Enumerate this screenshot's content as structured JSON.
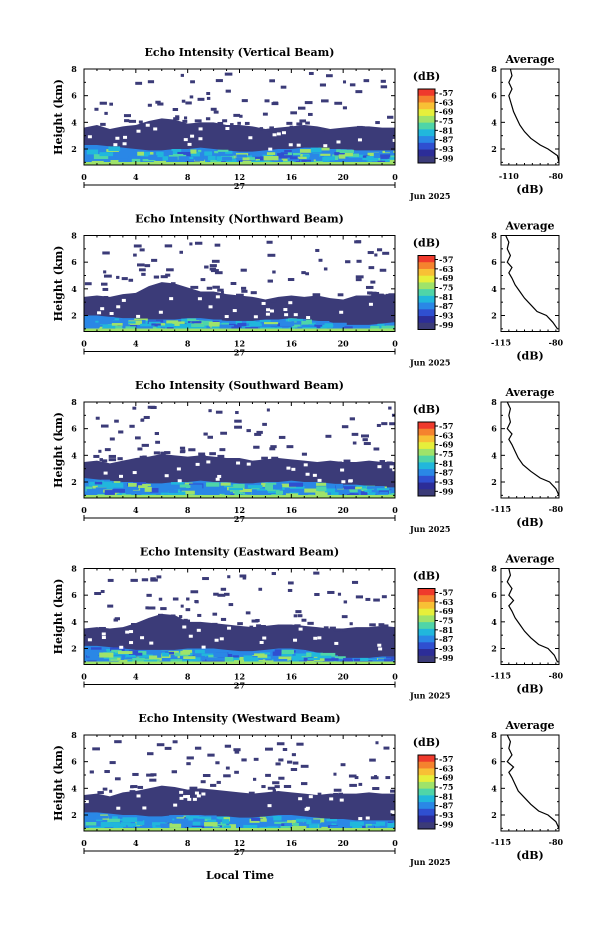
{
  "figure": {
    "bottom_xlabel": "Local Time",
    "colorbar_unit": "(dB)",
    "colorbar_ticks": [
      "-57",
      "-63",
      "-69",
      "-75",
      "-81",
      "-87",
      "-93",
      "-99"
    ],
    "colorbar_colors": [
      "#ef3a2c",
      "#f5822e",
      "#f8c035",
      "#e6ef3b",
      "#9fe36a",
      "#4fd5a8",
      "#21b7dc",
      "#2a87e6",
      "#2f4fd0",
      "#2c2d98",
      "#3b3b78"
    ],
    "colors": {
      "low_echo": "#3b3b78",
      "strong_echo": "#2a87e6"
    }
  },
  "chart_data": [
    {
      "type": "heatmap",
      "title": "Echo Intensity (Vertical Beam)",
      "ylabel": "Height (km)",
      "xticks": [
        "0",
        "4",
        "8",
        "12",
        "16",
        "20",
        "0"
      ],
      "day_label": "27",
      "date_label": "Jun 2025",
      "yticks": [
        "2",
        "4",
        "6",
        "8"
      ],
      "xlim": [
        0,
        24
      ],
      "ylim": [
        0.8,
        8
      ],
      "cloud_top_km": [
        3.6,
        3.8,
        3.5,
        3.7,
        3.8,
        4.1,
        4.3,
        4.2,
        3.9,
        4.0,
        4.0,
        3.8,
        3.8,
        3.7,
        3.5,
        3.6,
        3.7,
        3.8,
        3.7,
        3.5,
        3.6,
        3.7,
        3.7,
        3.6,
        3.6
      ],
      "strong_echo_top_km": [
        2.3,
        2.3,
        2.2,
        2.1,
        2.0,
        1.9,
        1.9,
        2.0,
        2.0,
        2.1,
        2.0,
        1.9,
        1.8,
        1.8,
        1.9,
        2.0,
        2.0,
        2.1,
        2.1,
        2.0,
        2.0,
        1.9,
        1.9,
        1.9,
        1.9
      ],
      "profile": {
        "title": "Average",
        "xlabel": "(dB)",
        "xticks": [
          "-110",
          "-80"
        ],
        "yticks": [
          "2",
          "4",
          "6",
          "8"
        ],
        "xlim": [
          -115,
          -78
        ],
        "ylim": [
          0.8,
          8
        ],
        "x": [
          -78,
          -79,
          -85,
          -90,
          -96,
          -100,
          -103,
          -105,
          -107,
          -108,
          -109,
          -110,
          -108,
          -110,
          -108,
          -109
        ],
        "y": [
          1.0,
          1.5,
          2.0,
          2.3,
          2.8,
          3.3,
          3.8,
          4.3,
          4.8,
          5.2,
          5.6,
          6.0,
          6.5,
          7.0,
          7.5,
          8.0
        ]
      }
    },
    {
      "type": "heatmap",
      "title": "Echo Intensity (Northward Beam)",
      "ylabel": "Height (km)",
      "xticks": [
        "0",
        "4",
        "8",
        "12",
        "16",
        "20",
        "0"
      ],
      "day_label": "27",
      "date_label": "Jun 2025",
      "yticks": [
        "2",
        "4",
        "6",
        "8"
      ],
      "xlim": [
        0,
        24
      ],
      "ylim": [
        0.8,
        8
      ],
      "cloud_top_km": [
        3.4,
        3.5,
        3.4,
        3.6,
        3.7,
        4.2,
        4.5,
        4.4,
        4.1,
        3.8,
        3.8,
        3.6,
        3.5,
        3.4,
        3.2,
        3.4,
        3.5,
        3.4,
        3.5,
        3.3,
        3.2,
        3.5,
        3.5,
        3.6,
        3.5
      ],
      "strong_echo_top_km": [
        2.0,
        2.0,
        1.9,
        1.8,
        1.8,
        1.7,
        1.7,
        1.7,
        1.8,
        1.8,
        1.7,
        1.6,
        1.6,
        1.6,
        1.7,
        1.7,
        1.8,
        1.7,
        1.6,
        1.5,
        1.3,
        1.3,
        1.3,
        1.4,
        1.5
      ],
      "profile": {
        "title": "Average",
        "xlabel": "(dB)",
        "xticks": [
          "-115",
          "-80"
        ],
        "yticks": [
          "2",
          "4",
          "6",
          "8"
        ],
        "xlim": [
          -115,
          -78
        ],
        "ylim": [
          0.8,
          8
        ],
        "x": [
          -79,
          -82,
          -86,
          -92,
          -96,
          -100,
          -103,
          -106,
          -108,
          -110,
          -108,
          -111,
          -109,
          -111,
          -110,
          -112
        ],
        "y": [
          1.0,
          1.5,
          2.0,
          2.3,
          2.8,
          3.3,
          3.8,
          4.3,
          4.8,
          5.2,
          5.6,
          6.0,
          6.5,
          7.0,
          7.5,
          8.0
        ]
      }
    },
    {
      "type": "heatmap",
      "title": "Echo Intensity (Southward Beam)",
      "ylabel": "Height (km)",
      "xticks": [
        "0",
        "4",
        "8",
        "12",
        "16",
        "20",
        "0"
      ],
      "day_label": "27",
      "date_label": "Jun 2025",
      "yticks": [
        "2",
        "4",
        "6",
        "8"
      ],
      "xlim": [
        0,
        24
      ],
      "ylim": [
        0.8,
        8
      ],
      "cloud_top_km": [
        3.5,
        3.6,
        3.4,
        3.6,
        3.8,
        3.9,
        4.1,
        4.0,
        3.9,
        4.0,
        3.9,
        3.8,
        3.8,
        3.6,
        3.7,
        3.8,
        3.7,
        3.6,
        3.5,
        3.6,
        3.5,
        3.5,
        3.6,
        3.5,
        3.5
      ],
      "strong_echo_top_km": [
        2.3,
        2.2,
        2.1,
        2.0,
        2.0,
        1.9,
        1.9,
        2.0,
        2.0,
        2.1,
        2.0,
        2.0,
        1.9,
        1.9,
        2.0,
        2.0,
        2.1,
        2.0,
        2.0,
        1.9,
        1.8,
        1.8,
        1.7,
        1.6,
        1.6
      ],
      "profile": {
        "title": "Average",
        "xlabel": "(dB)",
        "xticks": [
          "-115",
          "-80"
        ],
        "yticks": [
          "2",
          "4",
          "6",
          "8"
        ],
        "xlim": [
          -115,
          -78
        ],
        "ylim": [
          0.8,
          8
        ],
        "x": [
          -78,
          -80,
          -84,
          -90,
          -96,
          -101,
          -104,
          -106,
          -108,
          -110,
          -108,
          -111,
          -109,
          -110,
          -109,
          -111
        ],
        "y": [
          1.0,
          1.5,
          2.0,
          2.3,
          2.8,
          3.3,
          3.8,
          4.3,
          4.8,
          5.2,
          5.6,
          6.0,
          6.5,
          7.0,
          7.5,
          8.0
        ]
      }
    },
    {
      "type": "heatmap",
      "title": "Echo Intensity (Eastward Beam)",
      "ylabel": "Height (km)",
      "xticks": [
        "0",
        "4",
        "8",
        "12",
        "16",
        "20",
        "0"
      ],
      "day_label": "27",
      "date_label": "Jun 2025",
      "yticks": [
        "2",
        "4",
        "6",
        "8"
      ],
      "xlim": [
        0,
        24
      ],
      "ylim": [
        0.8,
        8
      ],
      "cloud_top_km": [
        3.5,
        3.6,
        3.5,
        3.6,
        3.9,
        4.3,
        4.6,
        4.5,
        4.0,
        4.0,
        3.9,
        3.8,
        3.7,
        3.6,
        3.7,
        3.8,
        3.8,
        3.7,
        3.6,
        3.5,
        3.5,
        3.6,
        3.6,
        3.7,
        3.6
      ],
      "strong_echo_top_km": [
        2.2,
        2.2,
        2.1,
        2.0,
        1.9,
        1.9,
        1.9,
        1.9,
        2.0,
        2.0,
        2.0,
        1.9,
        1.8,
        1.8,
        1.9,
        2.0,
        2.0,
        1.9,
        1.7,
        1.5,
        1.3,
        1.3,
        1.3,
        1.4,
        1.4
      ],
      "profile": {
        "title": "Average",
        "xlabel": "(dB)",
        "xticks": [
          "-115",
          "-80"
        ],
        "yticks": [
          "2",
          "4",
          "6",
          "8"
        ],
        "xlim": [
          -115,
          -78
        ],
        "ylim": [
          0.8,
          8
        ],
        "x": [
          -79,
          -81,
          -85,
          -91,
          -96,
          -100,
          -103,
          -106,
          -108,
          -110,
          -107,
          -110,
          -108,
          -111,
          -109,
          -110
        ],
        "y": [
          1.0,
          1.5,
          2.0,
          2.3,
          2.8,
          3.3,
          3.8,
          4.3,
          4.8,
          5.2,
          5.6,
          6.0,
          6.5,
          7.0,
          7.5,
          8.0
        ]
      }
    },
    {
      "type": "heatmap",
      "title": "Echo Intensity (Westward Beam)",
      "ylabel": "Height (km)",
      "xticks": [
        "0",
        "4",
        "8",
        "12",
        "16",
        "20",
        "0"
      ],
      "day_label": "27",
      "date_label": "Jun 2025",
      "yticks": [
        "2",
        "4",
        "6",
        "8"
      ],
      "xlim": [
        0,
        24
      ],
      "ylim": [
        0.8,
        8
      ],
      "cloud_top_km": [
        3.5,
        3.6,
        3.4,
        3.7,
        3.8,
        4.0,
        4.2,
        4.1,
        3.9,
        4.0,
        3.9,
        3.8,
        3.7,
        3.6,
        3.7,
        3.8,
        3.7,
        3.6,
        3.5,
        3.6,
        3.6,
        3.6,
        3.7,
        3.6,
        3.6
      ],
      "strong_echo_top_km": [
        2.2,
        2.2,
        2.1,
        2.0,
        2.0,
        1.9,
        1.9,
        2.0,
        2.0,
        2.0,
        1.9,
        1.9,
        1.8,
        1.8,
        1.9,
        2.0,
        2.0,
        1.9,
        1.8,
        1.7,
        1.7,
        1.6,
        1.6,
        1.6,
        1.6
      ],
      "profile": {
        "title": "Average",
        "xlabel": "(dB)",
        "xticks": [
          "-115",
          "-80"
        ],
        "yticks": [
          "2",
          "4",
          "6",
          "8"
        ],
        "xlim": [
          -115,
          -78
        ],
        "ylim": [
          0.8,
          8
        ],
        "x": [
          -78,
          -80,
          -85,
          -91,
          -96,
          -100,
          -104,
          -106,
          -108,
          -110,
          -107,
          -111,
          -108,
          -110,
          -109,
          -111
        ],
        "y": [
          1.0,
          1.5,
          2.0,
          2.3,
          2.8,
          3.3,
          3.8,
          4.3,
          4.8,
          5.2,
          5.6,
          6.0,
          6.5,
          7.0,
          7.5,
          8.0
        ]
      }
    }
  ]
}
